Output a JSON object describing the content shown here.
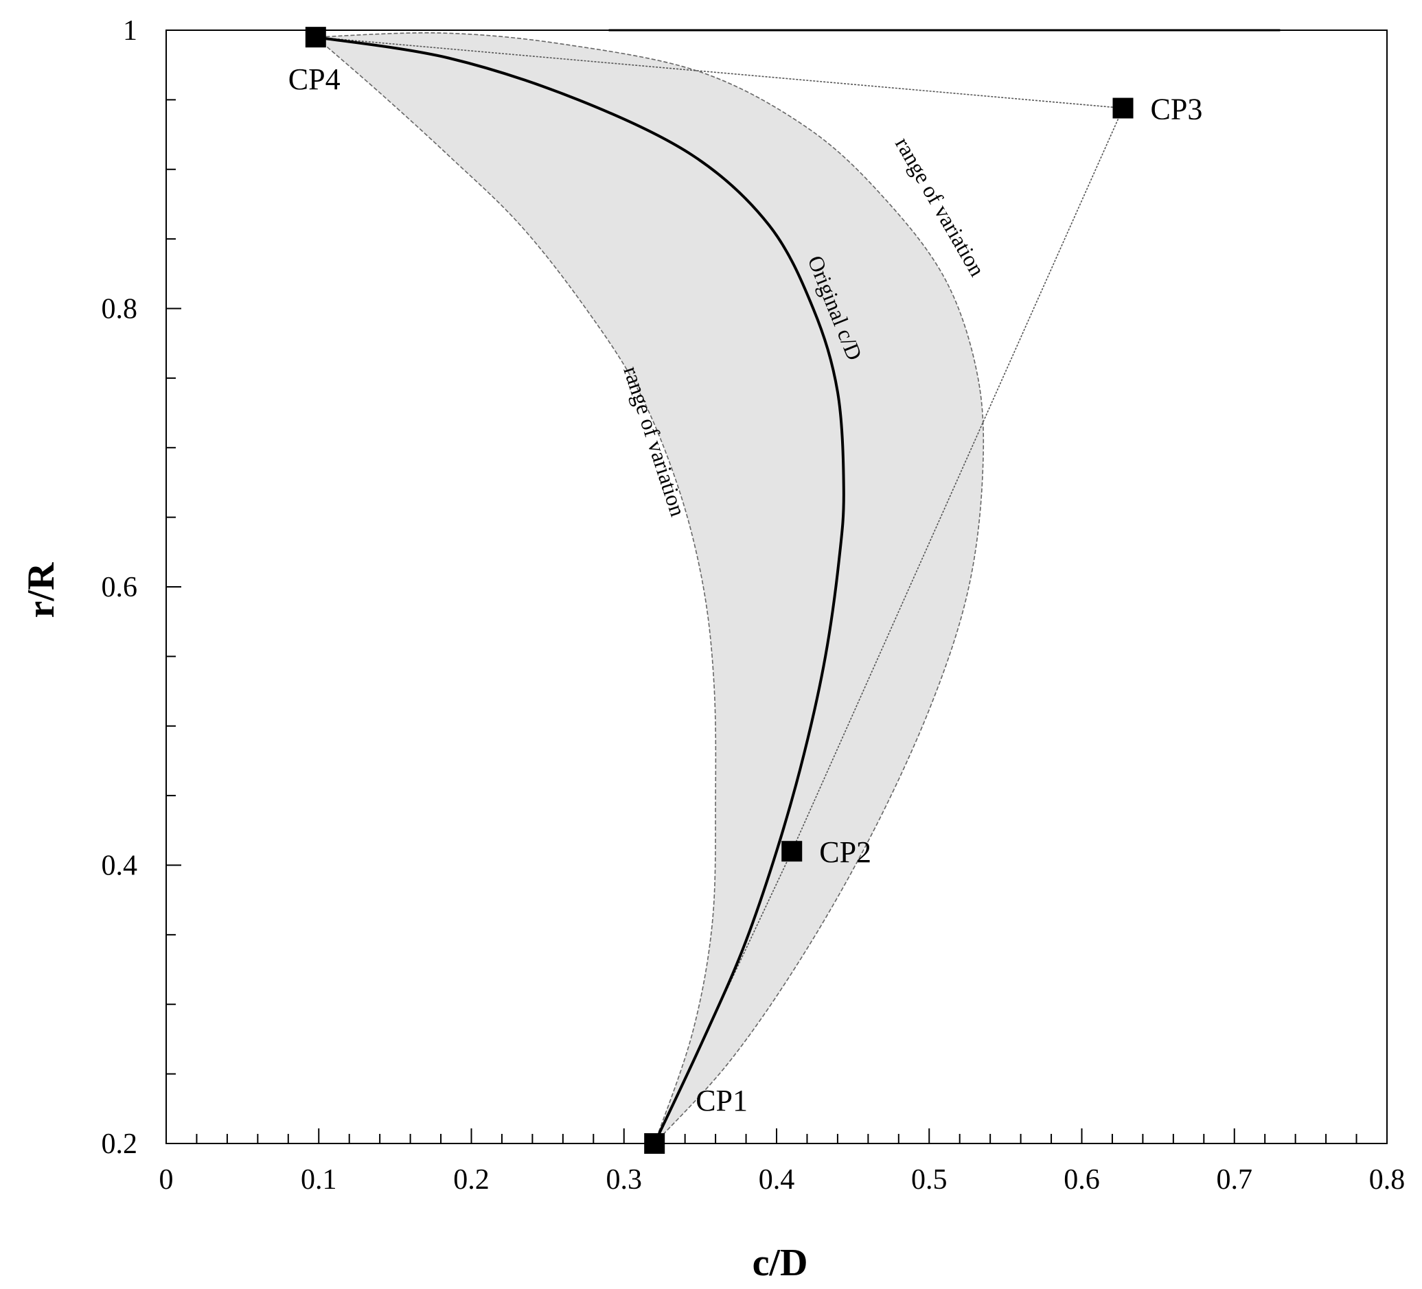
{
  "chart_data": {
    "type": "line",
    "title": "",
    "xlabel": "c/D",
    "ylabel": "r/R",
    "xlim": [
      0,
      0.8
    ],
    "ylim": [
      0.2,
      1.0
    ],
    "x_ticks": [
      0,
      0.1,
      0.2,
      0.3,
      0.4,
      0.5,
      0.6,
      0.7,
      0.8
    ],
    "x_tick_labels": [
      "0",
      "0.1",
      "0.2",
      "0.3",
      "0.4",
      "0.5",
      "0.6",
      "0.7",
      "0.8"
    ],
    "y_ticks": [
      0.2,
      0.4,
      0.6,
      0.8,
      1.0
    ],
    "y_tick_labels": [
      "0.2",
      "0.4",
      "0.6",
      "0.8",
      "1"
    ],
    "grid": false,
    "colors": {
      "band_fill": "#e4e4e4",
      "band_edge": "#666666",
      "curve": "#000000",
      "polygon": "#555555",
      "marker": "#000000"
    },
    "control_points": [
      {
        "label": "CP1",
        "x": 0.32,
        "y": 0.2
      },
      {
        "label": "CP2",
        "x": 0.41,
        "y": 0.41
      },
      {
        "label": "CP3",
        "x": 0.627,
        "y": 0.944
      },
      {
        "label": "CP4",
        "x": 0.098,
        "y": 0.995
      }
    ],
    "original_curve": {
      "label": "Original c/D",
      "points": [
        [
          0.32,
          0.2
        ],
        [
          0.35,
          0.27
        ],
        [
          0.378,
          0.34
        ],
        [
          0.4,
          0.41
        ],
        [
          0.418,
          0.48
        ],
        [
          0.432,
          0.55
        ],
        [
          0.441,
          0.62
        ],
        [
          0.444,
          0.67
        ],
        [
          0.44,
          0.74
        ],
        [
          0.424,
          0.8
        ],
        [
          0.395,
          0.86
        ],
        [
          0.345,
          0.91
        ],
        [
          0.27,
          0.95
        ],
        [
          0.185,
          0.98
        ],
        [
          0.098,
          0.995
        ]
      ]
    },
    "variation_range": {
      "label": "range of variation",
      "lower": [
        [
          0.32,
          0.2
        ],
        [
          0.345,
          0.28
        ],
        [
          0.358,
          0.36
        ],
        [
          0.36,
          0.45
        ],
        [
          0.359,
          0.53
        ],
        [
          0.352,
          0.6
        ],
        [
          0.336,
          0.67
        ],
        [
          0.31,
          0.74
        ],
        [
          0.275,
          0.8
        ],
        [
          0.232,
          0.86
        ],
        [
          0.185,
          0.91
        ],
        [
          0.14,
          0.955
        ],
        [
          0.098,
          0.995
        ]
      ],
      "upper": [
        [
          0.32,
          0.2
        ],
        [
          0.37,
          0.26
        ],
        [
          0.42,
          0.34
        ],
        [
          0.466,
          0.43
        ],
        [
          0.503,
          0.52
        ],
        [
          0.526,
          0.6
        ],
        [
          0.535,
          0.68
        ],
        [
          0.532,
          0.75
        ],
        [
          0.511,
          0.82
        ],
        [
          0.47,
          0.88
        ],
        [
          0.42,
          0.93
        ],
        [
          0.35,
          0.97
        ],
        [
          0.26,
          0.99
        ],
        [
          0.18,
          0.998
        ],
        [
          0.098,
          0.995
        ]
      ]
    }
  }
}
